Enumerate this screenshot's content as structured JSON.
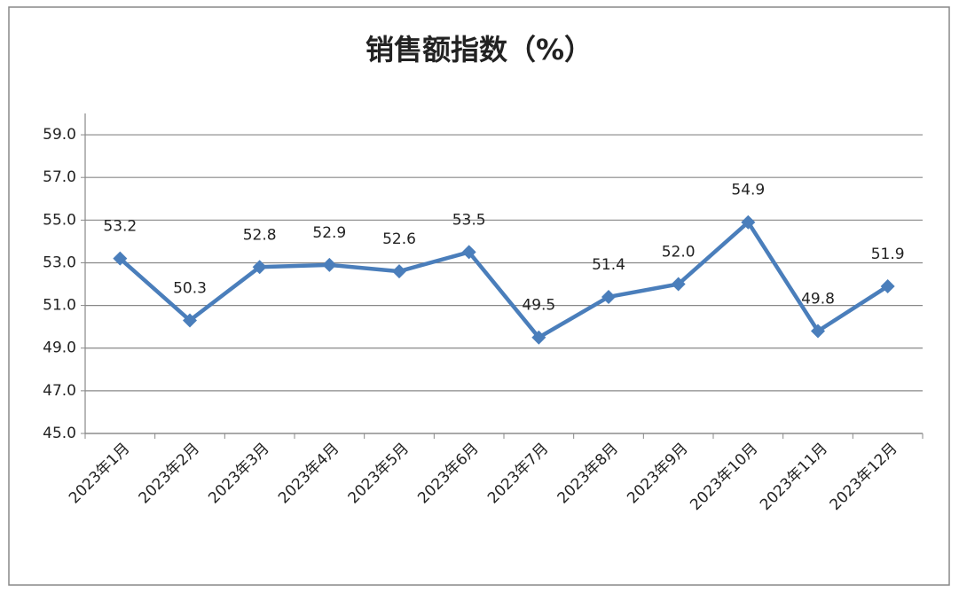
{
  "chart_data": {
    "type": "line",
    "title": "销售额指数（%）",
    "categories": [
      "2023年1月",
      "2023年2月",
      "2023年3月",
      "2023年4月",
      "2023年5月",
      "2023年6月",
      "2023年7月",
      "2023年8月",
      "2023年9月",
      "2023年10月",
      "2023年11月",
      "2023年12月"
    ],
    "values": [
      53.2,
      50.3,
      52.8,
      52.9,
      52.6,
      53.5,
      49.5,
      51.4,
      52,
      54.9,
      49.8,
      51.9
    ],
    "value_labels": [
      "53.2",
      "50.3",
      "52.8",
      "52.9",
      "52.6",
      "53.5",
      "49.5",
      "51.4",
      "52.0",
      "54.9",
      "49.8",
      "51.9"
    ],
    "color": "#4a7ebb",
    "ylim": [
      45,
      60
    ],
    "yticks": [
      {
        "value": 45,
        "label": "45.0"
      },
      {
        "value": 47,
        "label": "47.0"
      },
      {
        "value": 49,
        "label": "49.0"
      },
      {
        "value": 51,
        "label": "51.0"
      },
      {
        "value": 53,
        "label": "53.0"
      },
      {
        "value": 55,
        "label": "55.0"
      },
      {
        "value": 57,
        "label": "57.0"
      },
      {
        "value": 59,
        "label": "59.0"
      }
    ],
    "grid": true
  }
}
